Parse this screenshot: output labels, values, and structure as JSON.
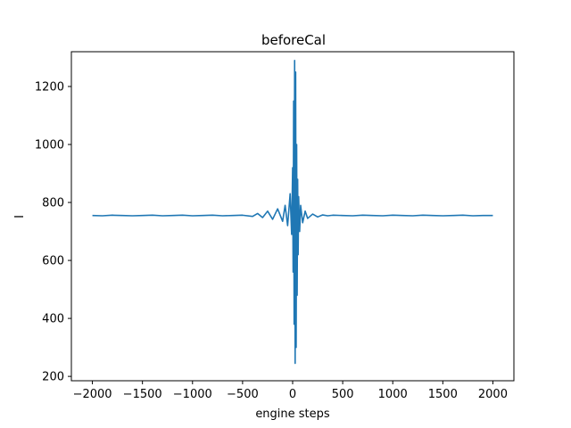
{
  "chart_data": {
    "type": "line",
    "title": "beforeCal",
    "xlabel": "engine steps",
    "ylabel": "I",
    "xlim": [
      -2210,
      2210
    ],
    "ylim": [
      185,
      1320
    ],
    "xticks": [
      -2000,
      -1500,
      -1000,
      -500,
      0,
      500,
      1000,
      1500,
      2000
    ],
    "yticks": [
      200,
      400,
      600,
      800,
      1000,
      1200
    ],
    "grid": false,
    "legend": "none",
    "series": [
      {
        "color": "#1f77b4",
        "x": [
          -2000,
          -1900,
          -1800,
          -1700,
          -1600,
          -1500,
          -1400,
          -1300,
          -1200,
          -1100,
          -1000,
          -900,
          -800,
          -700,
          -600,
          -500,
          -400,
          -350,
          -300,
          -250,
          -200,
          -150,
          -100,
          -75,
          -50,
          -25,
          -10,
          0,
          5,
          10,
          15,
          20,
          25,
          30,
          35,
          40,
          45,
          50,
          55,
          60,
          70,
          80,
          100,
          125,
          150,
          200,
          250,
          300,
          350,
          400,
          500,
          600,
          700,
          800,
          900,
          1000,
          1100,
          1200,
          1300,
          1400,
          1500,
          1600,
          1700,
          1800,
          1900,
          2000
        ],
        "y": [
          755,
          754,
          756,
          755,
          754,
          755,
          756,
          754,
          755,
          756,
          754,
          755,
          756,
          754,
          755,
          756,
          752,
          762,
          748,
          770,
          742,
          778,
          735,
          790,
          720,
          830,
          690,
          920,
          560,
          1150,
          380,
          1290,
          245,
          1250,
          300,
          1000,
          480,
          880,
          620,
          820,
          700,
          790,
          730,
          770,
          745,
          760,
          750,
          757,
          754,
          756,
          755,
          754,
          756,
          755,
          754,
          756,
          755,
          754,
          756,
          755,
          754,
          755,
          756,
          754,
          755,
          755
        ]
      }
    ]
  }
}
